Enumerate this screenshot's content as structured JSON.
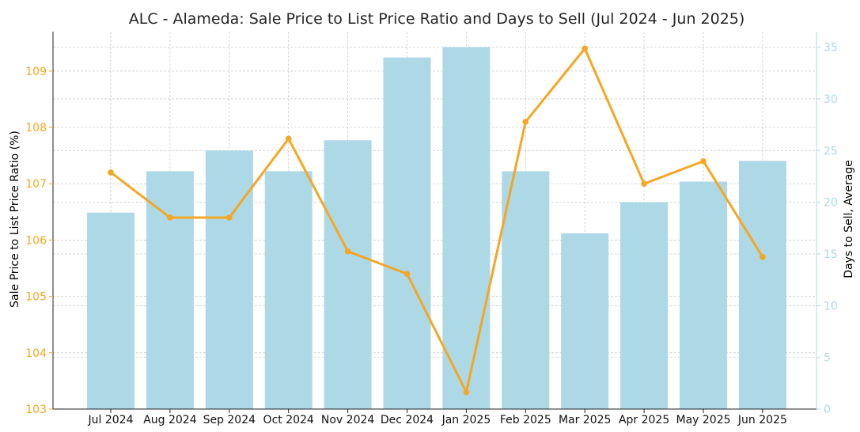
{
  "chart_data": {
    "type": "bar+line",
    "title": "ALC - Alameda: Sale Price to List Price Ratio and Days to Sell (Jul 2024 - Jun 2025)",
    "categories": [
      "Jul 2024",
      "Aug 2024",
      "Sep 2024",
      "Oct 2024",
      "Nov 2024",
      "Dec 2024",
      "Jan 2025",
      "Feb 2025",
      "Mar 2025",
      "Apr 2025",
      "May 2025",
      "Jun 2025"
    ],
    "series": [
      {
        "name": "Days to Sell, Average",
        "kind": "bar",
        "axis": "right",
        "color": "#add8e6",
        "values": [
          19,
          23,
          25,
          23,
          26,
          34,
          35,
          23,
          17,
          20,
          22,
          24
        ]
      },
      {
        "name": "Sale Price to List Price Ratio (%)",
        "kind": "line",
        "axis": "left",
        "color": "#f5a623",
        "values": [
          107.2,
          106.4,
          106.4,
          107.8,
          105.8,
          105.4,
          103.3,
          108.1,
          109.4,
          107.0,
          107.4,
          105.7
        ]
      }
    ],
    "ylabel_left": "Sale Price to List Price Ratio (%)",
    "ylabel_right": "Days to Sell, Average",
    "ylim_left": [
      103,
      109.7
    ],
    "yticks_left": [
      103,
      104,
      105,
      106,
      107,
      108,
      109
    ],
    "ylim_right": [
      0,
      36.5
    ],
    "yticks_right": [
      0,
      5,
      10,
      15,
      20,
      25,
      30,
      35
    ],
    "left_axis_color": "#f5a623",
    "right_axis_color": "#add8e6",
    "grid": true
  }
}
